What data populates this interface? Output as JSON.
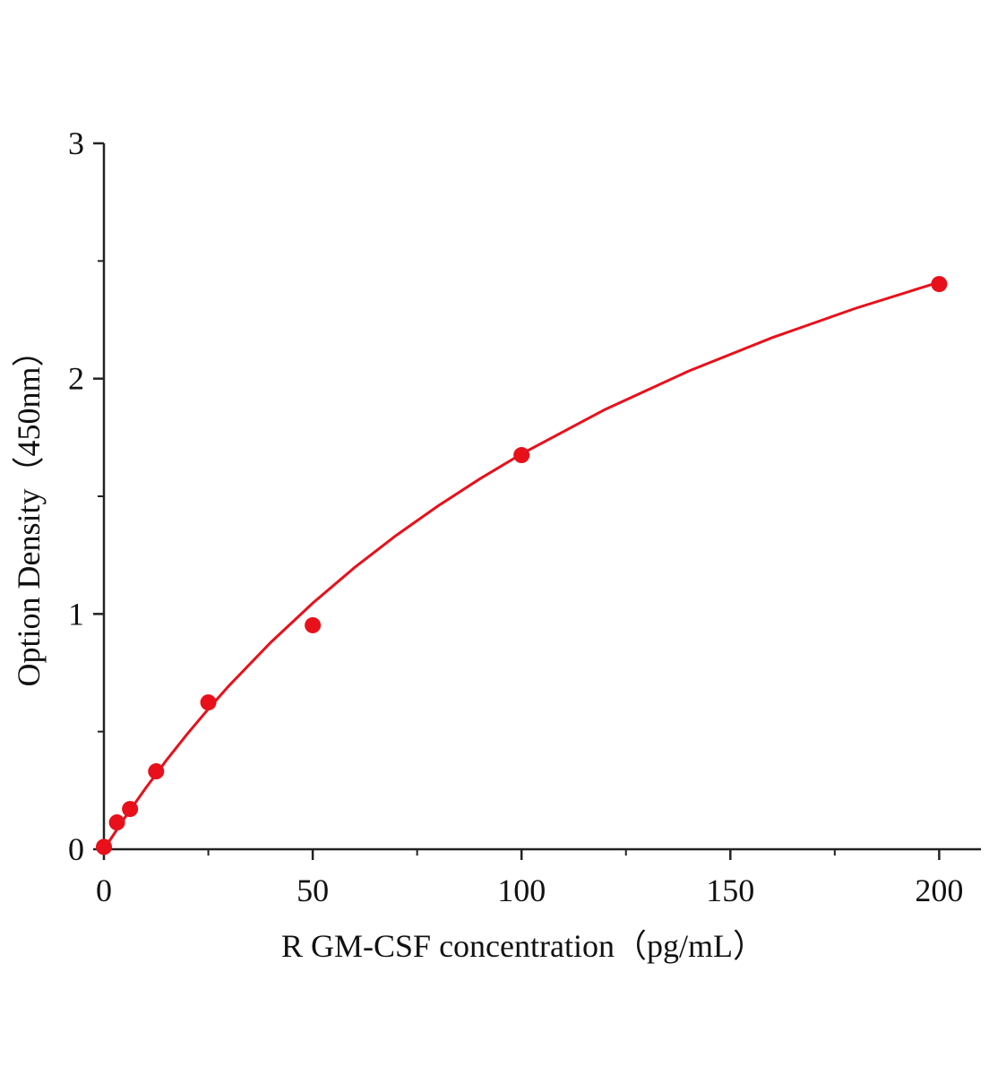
{
  "chart_data": {
    "type": "scatter",
    "x_label": "R GM-CSF concentration（pg/mL）",
    "y_label": "Option Density（450nm）",
    "xlim": [
      0,
      210
    ],
    "ylim": [
      0,
      3
    ],
    "xticks": [
      0,
      50,
      100,
      150,
      200
    ],
    "yticks": [
      0,
      1,
      2,
      3
    ],
    "xminorticks": [
      25,
      75,
      125,
      175
    ],
    "yminorticks": [
      0.5,
      1.5,
      2.5
    ],
    "grid": false,
    "series": [
      {
        "type": "scatter",
        "color": "#e8101a",
        "x": [
          0,
          3.125,
          6.25,
          12.5,
          25,
          50,
          100,
          200
        ],
        "values": [
          0.01,
          0.114,
          0.171,
          0.331,
          0.624,
          0.952,
          1.675,
          2.402
        ]
      },
      {
        "type": "line",
        "color": "#e8101a",
        "x": [
          0,
          5,
          10,
          15,
          20,
          25,
          30,
          40,
          50,
          60,
          70,
          80,
          90,
          100,
          120,
          140,
          160,
          180,
          200
        ],
        "values": [
          0,
          0.134,
          0.26,
          0.379,
          0.491,
          0.596,
          0.696,
          0.88,
          1.046,
          1.197,
          1.334,
          1.459,
          1.574,
          1.68,
          1.869,
          2.032,
          2.174,
          2.299,
          2.41
        ]
      }
    ]
  }
}
